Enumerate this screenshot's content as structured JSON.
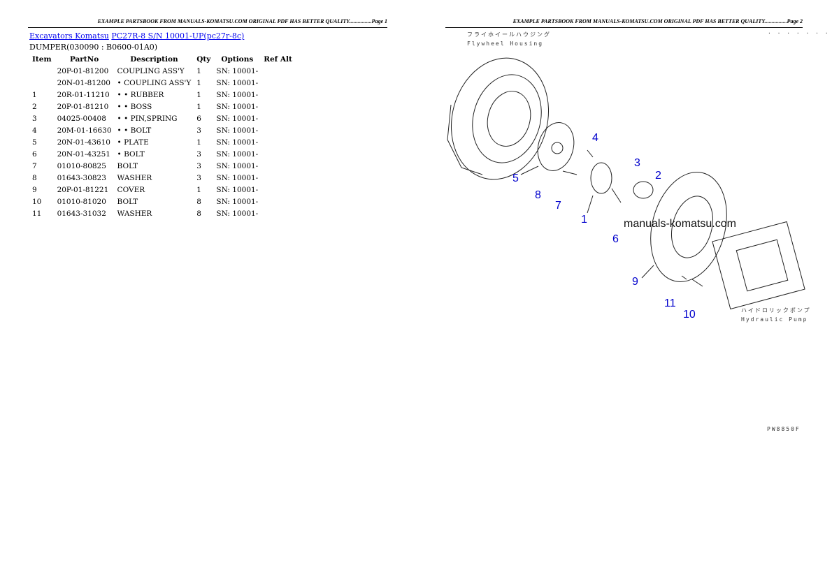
{
  "page1": {
    "header": "EXAMPLE PARTSBOOK FROM MANUALS-KOMATSU.COM ORIGINAL PDF HAS BETTER QUALITY................Page 1",
    "link1": "Excavators Komatsu",
    "link2": "PC27R-8 S/N 10001-UP(pc27r-8c)",
    "subtitle": "DUMPER(030090 : B0600-01A0)",
    "columns": [
      "Item",
      "PartNo",
      "Description",
      "Qty",
      "Options",
      "Ref Alt"
    ],
    "rows": [
      [
        "",
        "20P-01-81200",
        "COUPLING ASS'Y",
        "1",
        "SN: 10001-",
        ""
      ],
      [
        "",
        "20N-01-81200",
        "• COUPLING ASS'Y",
        "1",
        "SN: 10001-",
        ""
      ],
      [
        "1",
        "20R-01-11210",
        "• • RUBBER",
        "1",
        "SN: 10001-",
        ""
      ],
      [
        "2",
        "20P-01-81210",
        "• • BOSS",
        "1",
        "SN: 10001-",
        ""
      ],
      [
        "3",
        "04025-00408",
        "• • PIN,SPRING",
        "6",
        "SN: 10001-",
        ""
      ],
      [
        "4",
        "20M-01-16630",
        "• • BOLT",
        "3",
        "SN: 10001-",
        ""
      ],
      [
        "5",
        "20N-01-43610",
        "• PLATE",
        "1",
        "SN: 10001-",
        ""
      ],
      [
        "6",
        "20N-01-43251",
        "• BOLT",
        "3",
        "SN: 10001-",
        ""
      ],
      [
        "7",
        "01010-80825",
        "BOLT",
        "3",
        "SN: 10001-",
        ""
      ],
      [
        "8",
        "01643-30823",
        "WASHER",
        "3",
        "SN: 10001-",
        ""
      ],
      [
        "9",
        "20P-01-81221",
        "COVER",
        "1",
        "SN: 10001-",
        ""
      ],
      [
        "10",
        "01010-81020",
        "BOLT",
        "8",
        "SN: 10001-",
        ""
      ],
      [
        "11",
        "01643-31032",
        "WASHER",
        "8",
        "SN: 10001-",
        ""
      ]
    ]
  },
  "page2": {
    "header": "EXAMPLE PARTSBOOK FROM MANUALS-KOMATSU.COM ORIGINAL PDF HAS BETTER QUALITY................Page 2",
    "flywheel_jp": "フライホイールハウジング",
    "flywheel_en": "Flywheel Housing",
    "pump_jp": "ハイドロリックポンプ",
    "pump_en": "Hydraulic Pump",
    "watermark": "manuals-komatsu.com",
    "drawing_code": "PW8850F",
    "corner_mark": "· · · · · · ·",
    "callouts": [
      "4",
      "3",
      "2",
      "5",
      "8",
      "7",
      "1",
      "6",
      "9",
      "11",
      "10"
    ]
  }
}
